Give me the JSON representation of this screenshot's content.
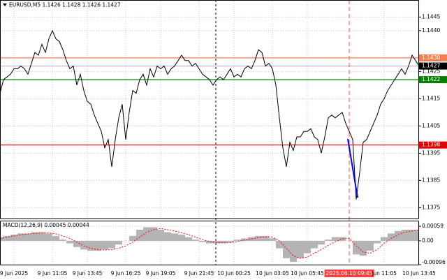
{
  "chart_data": [
    {
      "type": "line",
      "title": "EURUSD,M5  1.1426 1.1428 1.1426 1.1427",
      "color": "#000000",
      "grid": true,
      "ylim": [
        1.1371,
        1.1451
      ],
      "yticks": [
        1.1375,
        1.1385,
        1.1395,
        1.1405,
        1.1415,
        1.1425,
        {
          "value": 1.144,
          "label": "1.1440"
        },
        1.1445
      ],
      "levels": [
        {
          "value": 1.143,
          "label": "1.1430",
          "color": "#f08050"
        },
        {
          "value": 1.1422,
          "color": "#008000"
        },
        {
          "value": 1.1398,
          "color": "#e00000"
        },
        {
          "value": 1.1427,
          "color": "#000000"
        }
      ],
      "categories": [
        null,
        null,
        null,
        null,
        "9 Jun 2025",
        null,
        null,
        null,
        null,
        null,
        null,
        null,
        null,
        null,
        null,
        "9 Jun 11:05",
        null,
        null,
        null,
        null,
        null,
        null,
        null,
        null,
        null,
        "9 Jun 13:45",
        null,
        null,
        null,
        null,
        null,
        null,
        null,
        null,
        null,
        null,
        "9 Jun 16:25",
        null,
        null,
        null,
        null,
        null,
        null,
        null,
        null,
        null,
        "9 Jun 19:05",
        null,
        null,
        null,
        null,
        null,
        null,
        null,
        null,
        null,
        null,
        "9 Jun 21:45",
        null,
        null,
        null,
        null,
        null,
        null,
        null,
        null,
        null,
        "10 Jun 00:25",
        null,
        null,
        null,
        null,
        null,
        null,
        null,
        null,
        null,
        null,
        "10 Jun 03:05",
        null,
        null,
        null,
        null,
        null,
        null,
        null,
        null,
        null,
        "10 Jun 05:45",
        null,
        null,
        null,
        null,
        null,
        null,
        null,
        null,
        null,
        null,
        null,
        "2025.06.10 09:45",
        null,
        null,
        null,
        null,
        null,
        null,
        null,
        null,
        null,
        "Jun 11:05",
        null,
        null,
        null,
        null,
        null,
        null,
        null,
        null,
        null,
        "10 Jun 13:45"
      ],
      "values": [
        1.1417,
        1.1422,
        1.1423,
        1.1424,
        1.1426,
        1.1426,
        1.1427,
        1.1426,
        1.1424,
        1.1428,
        1.1432,
        1.1431,
        1.1435,
        1.1432,
        1.1437,
        1.144,
        1.1437,
        1.1436,
        1.1433,
        1.1429,
        1.1426,
        1.1427,
        1.142,
        1.1424,
        1.1418,
        1.1414,
        1.1413,
        1.1409,
        1.1406,
        1.1403,
        1.1397,
        1.14,
        1.139,
        1.14,
        1.1408,
        1.1413,
        1.14,
        1.141,
        1.1418,
        1.1417,
        1.1422,
        1.1424,
        1.142,
        1.1426,
        1.1423,
        1.1427,
        1.1426,
        1.1427,
        1.1424,
        1.1426,
        1.1427,
        1.1429,
        1.1431,
        1.1429,
        1.1429,
        1.1427,
        1.1428,
        1.1426,
        1.1424,
        1.1423,
        1.1422,
        1.142,
        1.1422,
        1.1423,
        1.1422,
        1.1424,
        1.1426,
        1.1423,
        1.1424,
        1.1423,
        1.1426,
        1.1427,
        1.1426,
        1.1429,
        1.1433,
        1.1432,
        1.1427,
        1.1428,
        1.1426,
        1.142,
        1.1408,
        1.1397,
        1.139,
        1.1399,
        1.1396,
        1.1401,
        1.1401,
        1.1403,
        1.1403,
        1.1404,
        1.1401,
        1.14,
        1.1395,
        1.1401,
        1.1408,
        1.1409,
        1.1408,
        1.1409,
        1.141,
        1.1406,
        1.1403,
        1.14,
        1.1378,
        1.1388,
        1.1399,
        1.14,
        1.1403,
        1.1406,
        1.1409,
        1.1413,
        1.1415,
        1.1418,
        1.142,
        1.1422,
        1.1424,
        1.1426,
        1.1424,
        1.1427,
        1.1431,
        1.1429,
        1.1427
      ]
    },
    {
      "type": "macd",
      "title": "MACD(12,26,9) 0.00045 0.00044",
      "grid": true,
      "ylim": [
        -0.00096,
        0.00076
      ],
      "yticks": [
        -0.00096,
        {
          "value": 0,
          "label": "0.00"
        },
        0.00059
      ],
      "series": [
        {
          "type": "bar",
          "color": "#b4b4b4",
          "values": [
            0.00015,
            0.0002,
            0.00025,
            0.0003,
            0.0003,
            0.00035,
            0.00035,
            0.0003,
            0.0002,
            5e-05,
            -0.0001,
            -0.00025,
            -0.00035,
            -0.0004,
            -0.0004,
            -0.00035,
            -0.0003,
            -0.00015,
            0,
            0.0002,
            0.00045,
            0.00055,
            0.00055,
            0.00045,
            0.00035,
            0.0003,
            0.00025,
            0.00015,
            5e-05,
            -5e-05,
            -0.0001,
            -0.0001,
            -0.0001,
            -5e-05,
            5e-05,
            0.0001,
            0.00015,
            0.0002,
            0.0002,
            0.0001,
            -0.0003,
            -0.0007,
            -0.00085,
            -0.0007,
            -0.0005,
            -0.0003,
            -0.00015,
            5e-05,
            0.00015,
            0.00015,
            0,
            -0.00055,
            -0.0006,
            -0.0004,
            -0.0001,
            0.00015,
            0.0003,
            0.0004,
            0.00045,
            0.00045,
            0.00045
          ]
        },
        {
          "type": "line",
          "color": "#ff0000",
          "values": [
            0.0001,
            0.00015,
            0.0002,
            0.00025,
            0.00028,
            0.0003,
            0.00032,
            0.00032,
            0.00028,
            0.0002,
            0.0001,
            -5e-05,
            -0.0002,
            -0.0003,
            -0.00035,
            -0.00037,
            -0.00035,
            -0.0003,
            -0.0002,
            -5e-05,
            0.00015,
            0.00035,
            0.00045,
            0.0005,
            0.00045,
            0.0004,
            0.00033,
            0.00025,
            0.00015,
            5e-05,
            -3e-05,
            -7e-05,
            -8e-05,
            -7e-05,
            -3e-05,
            3e-05,
            8e-05,
            0.00013,
            0.00016,
            0.00015,
            0,
            -0.0003,
            -0.0006,
            -0.0007,
            -0.00065,
            -0.0005,
            -0.00035,
            -0.00018,
            -3e-05,
            8e-05,
            0.0001,
            -0.0002,
            -0.00045,
            -0.0005,
            -0.00035,
            -0.0001,
            0.0001,
            0.00025,
            0.00035,
            0.0004,
            0.00044
          ]
        }
      ]
    }
  ]
}
